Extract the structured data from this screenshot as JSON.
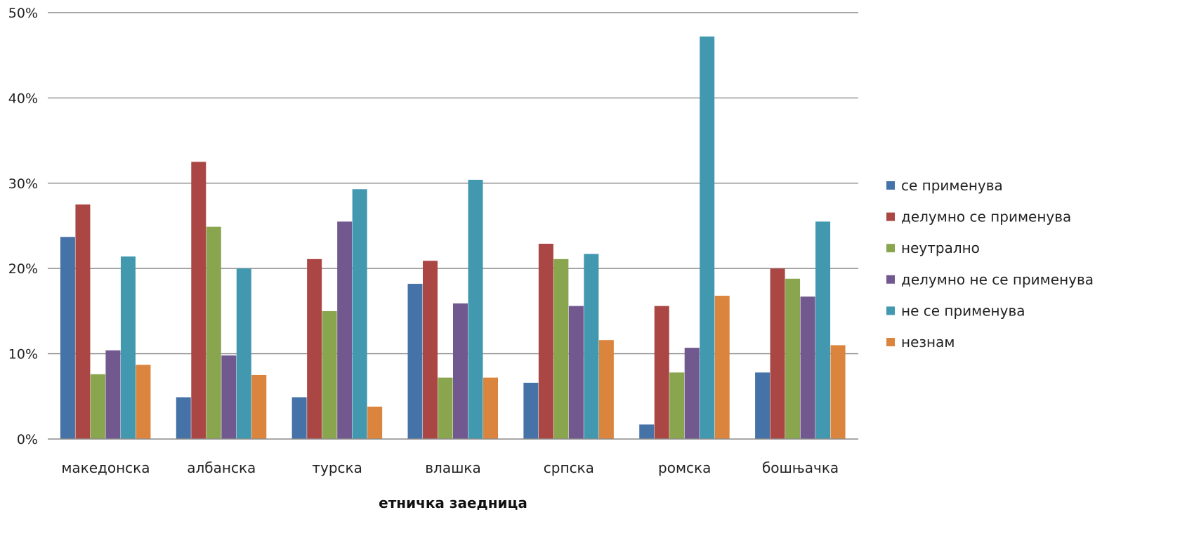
{
  "chart_data": {
    "type": "bar",
    "title": "",
    "xlabel": "етничка заедница",
    "ylabel": "",
    "ylim": [
      0,
      50
    ],
    "yticks": [
      "0%",
      "10%",
      "20%",
      "30%",
      "40%",
      "50%"
    ],
    "grid": true,
    "legend_position": "right",
    "categories": [
      "македонска",
      "албанска",
      "турска",
      "влашка",
      "српска",
      "ромска",
      "бошњачка"
    ],
    "series": [
      {
        "name": "се применува",
        "color": "#4572a7",
        "values": [
          23.7,
          4.9,
          4.9,
          18.2,
          6.6,
          1.7,
          7.8
        ]
      },
      {
        "name": "делумно се применува",
        "color": "#aa4643",
        "values": [
          27.5,
          32.5,
          21.1,
          20.9,
          22.9,
          15.6,
          20.0
        ]
      },
      {
        "name": "неутрално",
        "color": "#89a54e",
        "values": [
          7.6,
          24.9,
          15.0,
          7.2,
          21.1,
          7.8,
          18.8
        ]
      },
      {
        "name": "делумно не се применува",
        "color": "#71588f",
        "values": [
          10.4,
          9.8,
          25.5,
          15.9,
          15.6,
          10.7,
          16.7
        ]
      },
      {
        "name": "не се применува",
        "color": "#4198af",
        "values": [
          21.4,
          20.0,
          29.3,
          30.4,
          21.7,
          47.2,
          25.5
        ]
      },
      {
        "name": "незнам",
        "color": "#db843d",
        "values": [
          8.7,
          7.5,
          3.8,
          7.2,
          11.6,
          16.8,
          11.0
        ]
      }
    ]
  }
}
